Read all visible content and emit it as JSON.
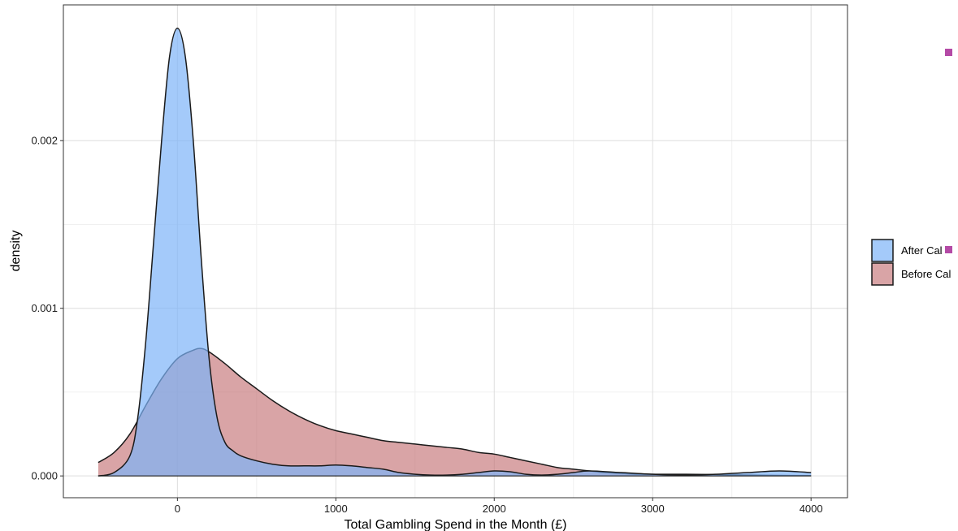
{
  "chart_data": {
    "type": "area",
    "title": "",
    "xlabel": "Total Gambling Spend in the Month (£)",
    "ylabel": "density",
    "xlim": [
      -720,
      4230
    ],
    "ylim": [
      -0.00013,
      0.00281
    ],
    "x_ticks": [
      0,
      1000,
      2000,
      3000,
      4000
    ],
    "x_tick_labels": [
      "0",
      "1000",
      "2000",
      "3000",
      "4000"
    ],
    "y_ticks": [
      0.0,
      0.001,
      0.002
    ],
    "y_tick_labels": [
      "0.000",
      "0.001",
      "0.002"
    ],
    "grid": true,
    "legend_position": "right",
    "series": [
      {
        "name": "Before Cal",
        "color": "#c0686b",
        "opacity": 0.6,
        "x": [
          -500,
          -400,
          -300,
          -200,
          -100,
          0,
          100,
          150,
          200,
          300,
          400,
          500,
          600,
          700,
          800,
          900,
          1000,
          1100,
          1200,
          1300,
          1400,
          1500,
          1600,
          1700,
          1800,
          1900,
          2000,
          2100,
          2200,
          2300,
          2400,
          2500,
          2600,
          2700,
          2800,
          2900,
          3000,
          3200,
          3400,
          3600,
          3800,
          4000
        ],
        "values": [
          8e-05,
          0.00014,
          0.00025,
          0.00042,
          0.00058,
          0.0007,
          0.00075,
          0.00076,
          0.00074,
          0.00067,
          0.00059,
          0.00052,
          0.00045,
          0.00039,
          0.00034,
          0.0003,
          0.00027,
          0.00025,
          0.00023,
          0.00021,
          0.0002,
          0.00019,
          0.00018,
          0.00017,
          0.00016,
          0.00014,
          0.00013,
          0.00011,
          9e-05,
          7e-05,
          5e-05,
          4e-05,
          3e-05,
          2e-05,
          1.5e-05,
          1e-05,
          1e-05,
          1e-05,
          8e-06,
          5e-06,
          3e-06,
          2e-06
        ]
      },
      {
        "name": "After Cal",
        "color": "#7eb3f8",
        "opacity": 0.7,
        "x": [
          -500,
          -400,
          -300,
          -250,
          -200,
          -150,
          -100,
          -50,
          0,
          50,
          100,
          150,
          200,
          250,
          300,
          350,
          400,
          500,
          600,
          700,
          800,
          900,
          1000,
          1100,
          1200,
          1300,
          1400,
          1500,
          1600,
          1700,
          1800,
          1900,
          2000,
          2100,
          2200,
          2300,
          2400,
          2500,
          2600,
          2800,
          3000,
          3200,
          3400,
          3600,
          3800,
          4000
        ],
        "values": [
          0.0,
          2e-05,
          0.00012,
          0.00035,
          0.0008,
          0.0014,
          0.002,
          0.0025,
          0.00267,
          0.0025,
          0.002,
          0.0013,
          0.0007,
          0.00035,
          0.0002,
          0.00015,
          0.00012,
          9e-05,
          7e-05,
          6e-05,
          6e-05,
          6e-05,
          6.5e-05,
          6e-05,
          5e-05,
          4e-05,
          2e-05,
          1e-05,
          5e-06,
          5e-06,
          1e-05,
          2e-05,
          3e-05,
          2.5e-05,
          1e-05,
          5e-06,
          1e-05,
          2e-05,
          3e-05,
          2e-05,
          1e-05,
          5e-06,
          1e-05,
          2e-05,
          3e-05,
          2e-05
        ]
      }
    ],
    "legend_entries": [
      {
        "label": "After Cal",
        "color": "#7eb3f8",
        "opacity": 0.7
      },
      {
        "label": "Before Cal",
        "color": "#c0686b",
        "opacity": 0.6
      }
    ],
    "marker_color": "#b44aa6"
  }
}
